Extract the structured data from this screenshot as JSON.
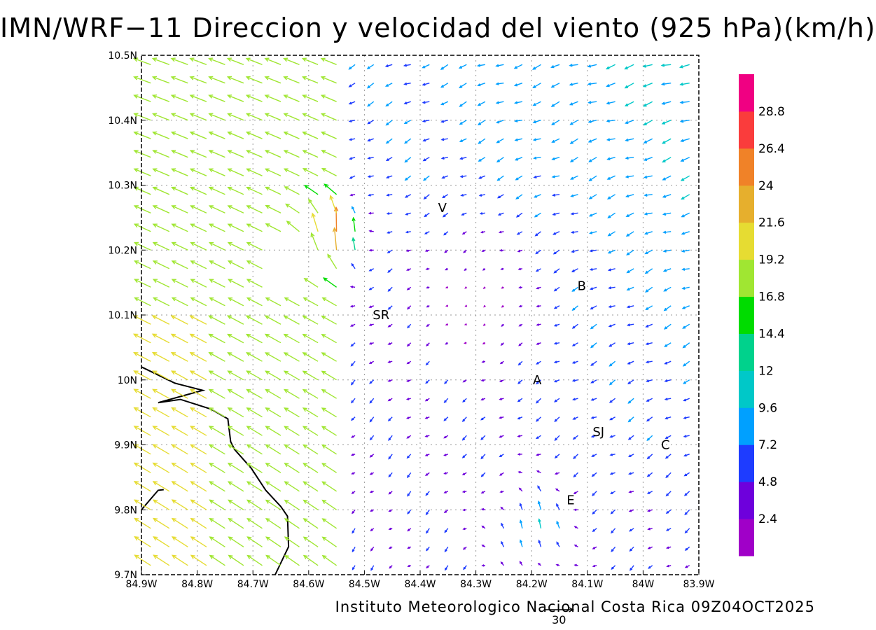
{
  "title": "IMN/WRF−11 Direccion y velocidad del viento (925 hPa)(km/h)",
  "footer": "Instituto Meteorologico Nacional Costa Rica 09Z04OCT2025",
  "map": {
    "lon_range": [
      -84.9,
      -83.9
    ],
    "lat_range": [
      9.7,
      10.5
    ],
    "lon_ticks": [
      {
        "lon": -84.9,
        "label": "84.9W"
      },
      {
        "lon": -84.8,
        "label": "84.8W"
      },
      {
        "lon": -84.7,
        "label": "84.7W"
      },
      {
        "lon": -84.6,
        "label": "84.6W"
      },
      {
        "lon": -84.5,
        "label": "84.5W"
      },
      {
        "lon": -84.4,
        "label": "84.4W"
      },
      {
        "lon": -84.3,
        "label": "84.3W"
      },
      {
        "lon": -84.2,
        "label": "84.2W"
      },
      {
        "lon": -84.1,
        "label": "84.1W"
      },
      {
        "lon": -84.0,
        "label": "84W"
      },
      {
        "lon": -83.9,
        "label": "83.9W"
      }
    ],
    "lat_ticks": [
      {
        "lat": 9.7,
        "label": "9.7N"
      },
      {
        "lat": 9.8,
        "label": "9.8N"
      },
      {
        "lat": 9.9,
        "label": "9.9N"
      },
      {
        "lat": 10.0,
        "label": "10N"
      },
      {
        "lat": 10.1,
        "label": "10.1N"
      },
      {
        "lat": 10.2,
        "label": "10.2N"
      },
      {
        "lat": 10.3,
        "label": "10.3N"
      },
      {
        "lat": 10.4,
        "label": "10.4N"
      },
      {
        "lat": 10.5,
        "label": "10.5N"
      }
    ],
    "grid": true,
    "places": [
      {
        "label": "V",
        "lon": -84.36,
        "lat": 10.265
      },
      {
        "label": "B",
        "lon": -84.11,
        "lat": 10.145
      },
      {
        "label": "SR",
        "lon": -84.47,
        "lat": 10.1
      },
      {
        "label": "A",
        "lon": -84.19,
        "lat": 10.0
      },
      {
        "label": "SJ",
        "lon": -84.08,
        "lat": 9.92
      },
      {
        "label": "C",
        "lon": -83.96,
        "lat": 9.9
      },
      {
        "label": "E",
        "lon": -84.13,
        "lat": 9.815
      }
    ],
    "coastline": [
      [
        -84.9,
        10.02
      ],
      [
        -84.84,
        9.995
      ],
      [
        -84.79,
        9.984
      ],
      [
        -84.87,
        9.965
      ],
      [
        -84.83,
        9.97
      ],
      [
        -84.775,
        9.955
      ],
      [
        -84.745,
        9.94
      ],
      [
        -84.74,
        9.905
      ],
      [
        -84.733,
        9.893
      ],
      [
        -84.703,
        9.864
      ],
      [
        -84.677,
        9.83
      ],
      [
        -84.65,
        9.805
      ],
      [
        -84.638,
        9.79
      ],
      [
        -84.636,
        9.743
      ],
      [
        -84.66,
        9.7
      ]
    ],
    "coastline_nw_cape": [
      [
        -84.9,
        9.8
      ],
      [
        -84.87,
        9.83
      ],
      [
        -84.86,
        9.831
      ]
    ],
    "reference_vector": {
      "length": 30,
      "label": "30"
    }
  },
  "colorbar": {
    "levels": [
      2.4,
      4.8,
      7.2,
      9.6,
      12,
      14.4,
      16.8,
      19.2,
      21.6,
      24,
      26.4,
      28.8
    ],
    "labels": [
      "2.4",
      "4.8",
      "7.2",
      "9.6",
      "12",
      "14.4",
      "16.8",
      "19.2",
      "21.6",
      "24",
      "26.4",
      "28.8"
    ],
    "colors": [
      "#a000c8",
      "#6e00dc",
      "#1e3cff",
      "#00a0ff",
      "#00c8c8",
      "#00d28c",
      "#00dc00",
      "#a0e632",
      "#e6dc32",
      "#e6af2d",
      "#f08228",
      "#fa3c3c",
      "#f00082"
    ]
  }
}
